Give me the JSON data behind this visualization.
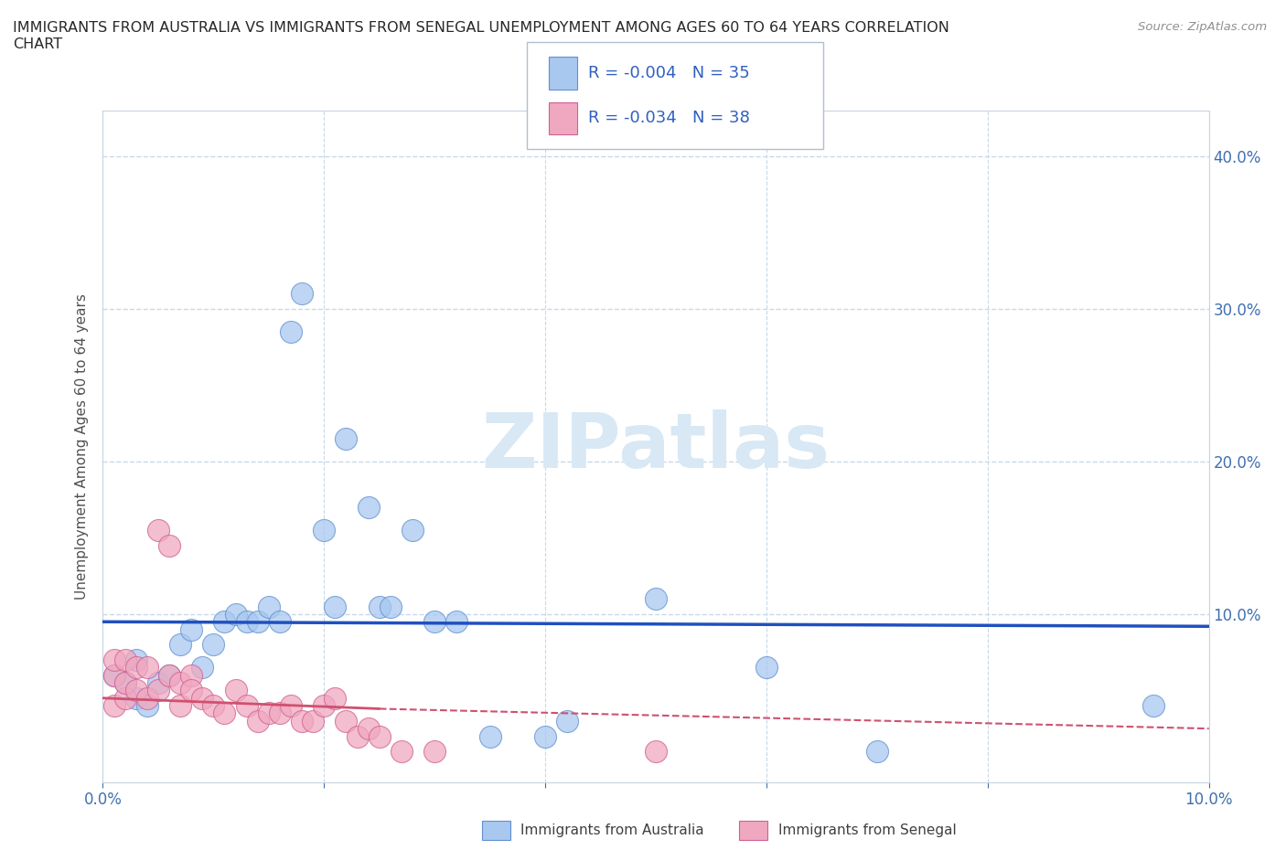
{
  "title": "IMMIGRANTS FROM AUSTRALIA VS IMMIGRANTS FROM SENEGAL UNEMPLOYMENT AMONG AGES 60 TO 64 YEARS CORRELATION\nCHART",
  "source": "Source: ZipAtlas.com",
  "ylabel": "Unemployment Among Ages 60 to 64 years",
  "xlim": [
    0.0,
    0.1
  ],
  "ylim": [
    -0.01,
    0.43
  ],
  "xtick_positions": [
    0.0,
    0.02,
    0.04,
    0.06,
    0.08,
    0.1
  ],
  "xticklabels": [
    "0.0%",
    "",
    "",
    "",
    "",
    "10.0%"
  ],
  "ytick_positions": [
    0.0,
    0.1,
    0.2,
    0.3,
    0.4
  ],
  "yticklabels_right": [
    "",
    "10.0%",
    "20.0%",
    "30.0%",
    "40.0%"
  ],
  "australia_color": "#a8c8f0",
  "australia_edge_color": "#6090d0",
  "senegal_color": "#f0a8c0",
  "senegal_edge_color": "#d06090",
  "australia_line_color": "#2050c0",
  "senegal_line_color": "#d05070",
  "grid_color": "#c8d8e8",
  "background_color": "#ffffff",
  "watermark_color": "#d8e8f4",
  "legend_R_aus": "R = -0.004",
  "legend_N_aus": "N = 35",
  "legend_R_sen": "R = -0.034",
  "legend_N_sen": "N = 38",
  "aus_x": [
    0.001,
    0.002,
    0.003,
    0.003,
    0.004,
    0.005,
    0.006,
    0.007,
    0.008,
    0.009,
    0.01,
    0.011,
    0.012,
    0.013,
    0.014,
    0.015,
    0.016,
    0.017,
    0.018,
    0.02,
    0.021,
    0.022,
    0.024,
    0.025,
    0.026,
    0.028,
    0.03,
    0.032,
    0.035,
    0.04,
    0.042,
    0.06,
    0.095,
    0.07,
    0.05
  ],
  "aus_y": [
    0.06,
    0.055,
    0.045,
    0.07,
    0.04,
    0.055,
    0.06,
    0.08,
    0.09,
    0.065,
    0.08,
    0.095,
    0.1,
    0.095,
    0.095,
    0.105,
    0.095,
    0.285,
    0.31,
    0.155,
    0.105,
    0.215,
    0.17,
    0.105,
    0.105,
    0.155,
    0.095,
    0.095,
    0.02,
    0.02,
    0.03,
    0.065,
    0.04,
    0.01,
    0.11
  ],
  "sen_x": [
    0.001,
    0.001,
    0.001,
    0.002,
    0.002,
    0.002,
    0.003,
    0.003,
    0.004,
    0.004,
    0.005,
    0.005,
    0.006,
    0.006,
    0.007,
    0.007,
    0.008,
    0.008,
    0.009,
    0.01,
    0.011,
    0.012,
    0.013,
    0.014,
    0.015,
    0.016,
    0.017,
    0.018,
    0.019,
    0.02,
    0.021,
    0.022,
    0.023,
    0.024,
    0.025,
    0.027,
    0.03,
    0.05
  ],
  "sen_y": [
    0.04,
    0.06,
    0.07,
    0.045,
    0.055,
    0.07,
    0.05,
    0.065,
    0.045,
    0.065,
    0.155,
    0.05,
    0.145,
    0.06,
    0.055,
    0.04,
    0.06,
    0.05,
    0.045,
    0.04,
    0.035,
    0.05,
    0.04,
    0.03,
    0.035,
    0.035,
    0.04,
    0.03,
    0.03,
    0.04,
    0.045,
    0.03,
    0.02,
    0.025,
    0.02,
    0.01,
    0.01,
    0.01
  ]
}
